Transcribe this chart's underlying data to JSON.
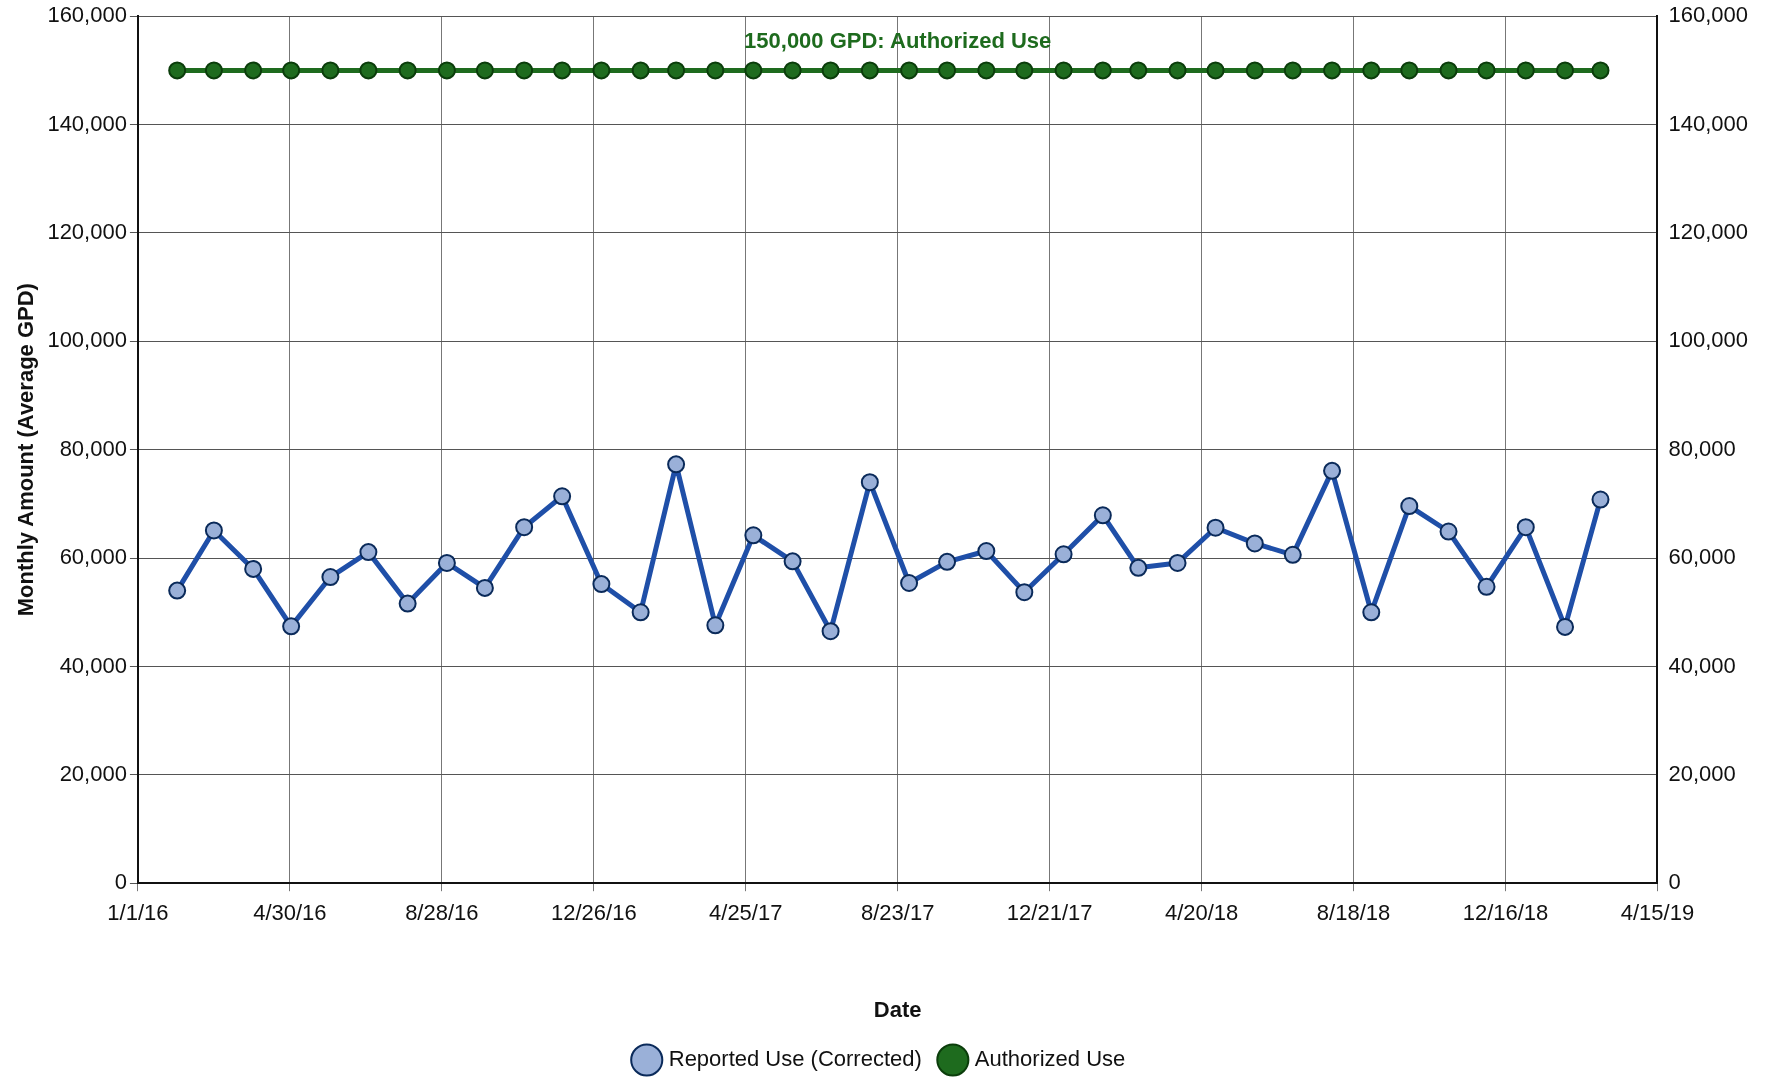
{
  "chart_data": {
    "type": "line",
    "xlabel": "Date",
    "ylabel": "Monthly Amount (Average GPD)",
    "x": [
      "2016-02-01",
      "2016-03-01",
      "2016-04-01",
      "2016-05-01",
      "2016-06-01",
      "2016-07-01",
      "2016-08-01",
      "2016-09-01",
      "2016-10-01",
      "2016-11-01",
      "2016-12-01",
      "2017-01-01",
      "2017-02-01",
      "2017-03-01",
      "2017-04-01",
      "2017-05-01",
      "2017-06-01",
      "2017-07-01",
      "2017-08-01",
      "2017-09-01",
      "2017-10-01",
      "2017-11-01",
      "2017-12-01",
      "2018-01-01",
      "2018-02-01",
      "2018-03-01",
      "2018-04-01",
      "2018-05-01",
      "2018-06-01",
      "2018-07-01",
      "2018-08-01",
      "2018-09-01",
      "2018-10-01",
      "2018-11-01",
      "2018-12-01",
      "2019-01-01",
      "2019-02-01",
      "2019-03-01"
    ],
    "series": [
      {
        "name": "Reported Use (Corrected)",
        "color": "#1f4fa8",
        "values": [
          54000,
          65100,
          58000,
          47400,
          56500,
          61100,
          51600,
          59100,
          54500,
          65700,
          71400,
          55200,
          50000,
          77300,
          47600,
          64200,
          59400,
          46500,
          74000,
          55400,
          59300,
          61300,
          53700,
          60700,
          67900,
          58200,
          59100,
          65600,
          62700,
          60600,
          76100,
          50000,
          69600,
          64900,
          54700,
          65700,
          47300,
          70800
        ]
      },
      {
        "name": "Authorized Use",
        "color": "#1e6b1e",
        "values": [
          150000,
          150000,
          150000,
          150000,
          150000,
          150000,
          150000,
          150000,
          150000,
          150000,
          150000,
          150000,
          150000,
          150000,
          150000,
          150000,
          150000,
          150000,
          150000,
          150000,
          150000,
          150000,
          150000,
          150000,
          150000,
          150000,
          150000,
          150000,
          150000,
          150000,
          150000,
          150000,
          150000,
          150000,
          150000,
          150000,
          150000,
          150000
        ]
      }
    ],
    "xlim": [
      "2016-01-01",
      "2019-04-15"
    ],
    "xticks": [
      {
        "value": "2016-01-01",
        "label": "1/1/16"
      },
      {
        "value": "2016-04-30",
        "label": "4/30/16"
      },
      {
        "value": "2016-08-28",
        "label": "8/28/16"
      },
      {
        "value": "2016-12-26",
        "label": "12/26/16"
      },
      {
        "value": "2017-04-25",
        "label": "4/25/17"
      },
      {
        "value": "2017-08-23",
        "label": "8/23/17"
      },
      {
        "value": "2017-12-21",
        "label": "12/21/17"
      },
      {
        "value": "2018-04-20",
        "label": "4/20/18"
      },
      {
        "value": "2018-08-18",
        "label": "8/18/18"
      },
      {
        "value": "2018-12-16",
        "label": "12/16/18"
      },
      {
        "value": "2019-04-15",
        "label": "4/15/19"
      }
    ],
    "ylim": [
      0,
      160000
    ],
    "yticks": [
      {
        "value": 0,
        "label": "0"
      },
      {
        "value": 20000,
        "label": "20,000"
      },
      {
        "value": 40000,
        "label": "40,000"
      },
      {
        "value": 60000,
        "label": "60,000"
      },
      {
        "value": 80000,
        "label": "80,000"
      },
      {
        "value": 100000,
        "label": "100,000"
      },
      {
        "value": 120000,
        "label": "120,000"
      },
      {
        "value": 140000,
        "label": "140,000"
      },
      {
        "value": 160000,
        "label": "160,000"
      }
    ],
    "y2lim": [
      0,
      160000
    ],
    "y2ticks": [
      {
        "value": 0,
        "label": "0"
      },
      {
        "value": 20000,
        "label": "20,000"
      },
      {
        "value": 40000,
        "label": "40,000"
      },
      {
        "value": 60000,
        "label": "60,000"
      },
      {
        "value": 80000,
        "label": "80,000"
      },
      {
        "value": 100000,
        "label": "100,000"
      },
      {
        "value": 120000,
        "label": "120,000"
      },
      {
        "value": 140000,
        "label": "140,000"
      },
      {
        "value": 160000,
        "label": "160,000"
      }
    ],
    "annotations": [
      "150,000 GPD: Authorized Use"
    ],
    "grid": true,
    "legend": "bottom",
    "marker": "circle",
    "line_style": "solid"
  }
}
